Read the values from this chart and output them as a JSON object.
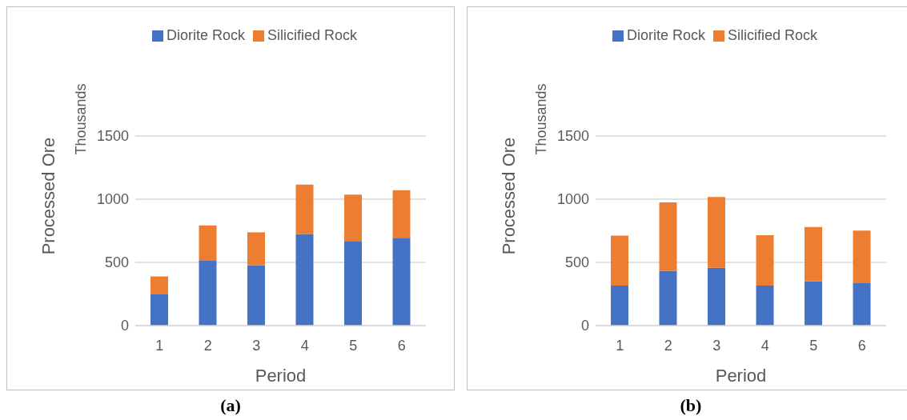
{
  "chart_data": [
    {
      "type": "bar",
      "ylabel": "Processed Ore",
      "xlabel": "Period",
      "annotations": [
        "Thousands",
        "(a)"
      ],
      "categories": [
        "1",
        "2",
        "3",
        "4",
        "5",
        "6"
      ],
      "stacked": true,
      "series": [
        {
          "name": "Diorite Rock",
          "color": "#4472c4",
          "values": [
            251,
            513,
            478,
            724,
            670,
            694
          ]
        },
        {
          "name": "Silicified Rock",
          "color": "#ed7d31",
          "values": [
            138,
            279,
            260,
            392,
            366,
            377
          ]
        }
      ],
      "ylim": [
        0,
        1500
      ],
      "yticks": [
        0,
        500,
        1000,
        1500
      ],
      "grid": "y",
      "legend": "top"
    },
    {
      "type": "bar",
      "ylabel": "Processed Ore",
      "xlabel": "Period",
      "annotations": [
        "Thousands",
        "(b)"
      ],
      "categories": [
        "1",
        "2",
        "3",
        "4",
        "5",
        "6"
      ],
      "stacked": true,
      "series": [
        {
          "name": "Diorite Rock",
          "color": "#4472c4",
          "values": [
            316,
            434,
            457,
            316,
            349,
            335
          ]
        },
        {
          "name": "Silicified Rock",
          "color": "#ed7d31",
          "values": [
            396,
            541,
            560,
            399,
            431,
            417
          ]
        }
      ],
      "ylim": [
        0,
        1500
      ],
      "yticks": [
        0,
        500,
        1000,
        1500
      ],
      "grid": "y",
      "legend": "top"
    }
  ]
}
